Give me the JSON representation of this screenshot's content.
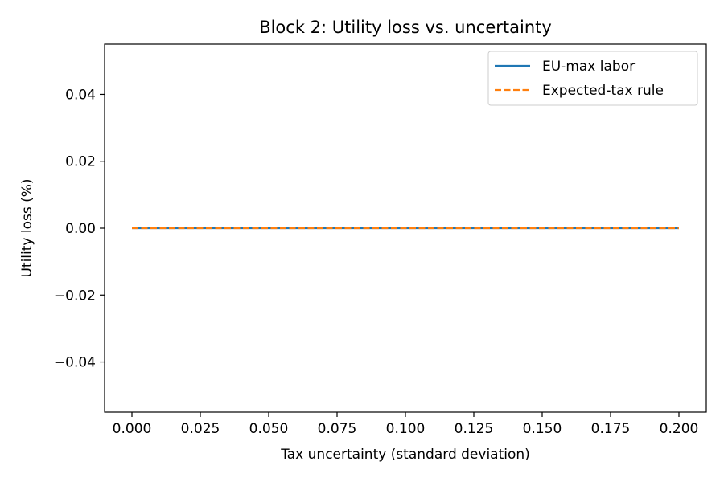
{
  "chart_data": {
    "type": "line",
    "title": "Block 2: Utility loss vs. uncertainty",
    "xlabel": "Tax uncertainty (standard deviation)",
    "ylabel": "Utility loss (%)",
    "xlim": [
      -0.01,
      0.21
    ],
    "ylim": [
      -0.055,
      0.055
    ],
    "xticks": [
      0.0,
      0.025,
      0.05,
      0.075,
      0.1,
      0.125,
      0.15,
      0.175,
      0.2
    ],
    "xtick_labels": [
      "0.000",
      "0.025",
      "0.050",
      "0.075",
      "0.100",
      "0.125",
      "0.150",
      "0.175",
      "0.200"
    ],
    "yticks": [
      -0.04,
      -0.02,
      0.0,
      0.02,
      0.04
    ],
    "ytick_labels": [
      "−0.04",
      "−0.02",
      "0.00",
      "0.02",
      "0.04"
    ],
    "grid": false,
    "legend_position": "top-right",
    "series": [
      {
        "name": "EU-max labor",
        "color": "#1f77b4",
        "style": "solid",
        "x": [
          0.0,
          0.05,
          0.1,
          0.15,
          0.2
        ],
        "y": [
          0.0,
          0.0,
          0.0,
          0.0,
          0.0
        ]
      },
      {
        "name": "Expected-tax rule",
        "color": "#ff7f0e",
        "style": "dashed",
        "x": [
          0.0,
          0.05,
          0.1,
          0.15,
          0.2
        ],
        "y": [
          0.0,
          0.0,
          0.0,
          0.0,
          0.0
        ]
      }
    ]
  }
}
